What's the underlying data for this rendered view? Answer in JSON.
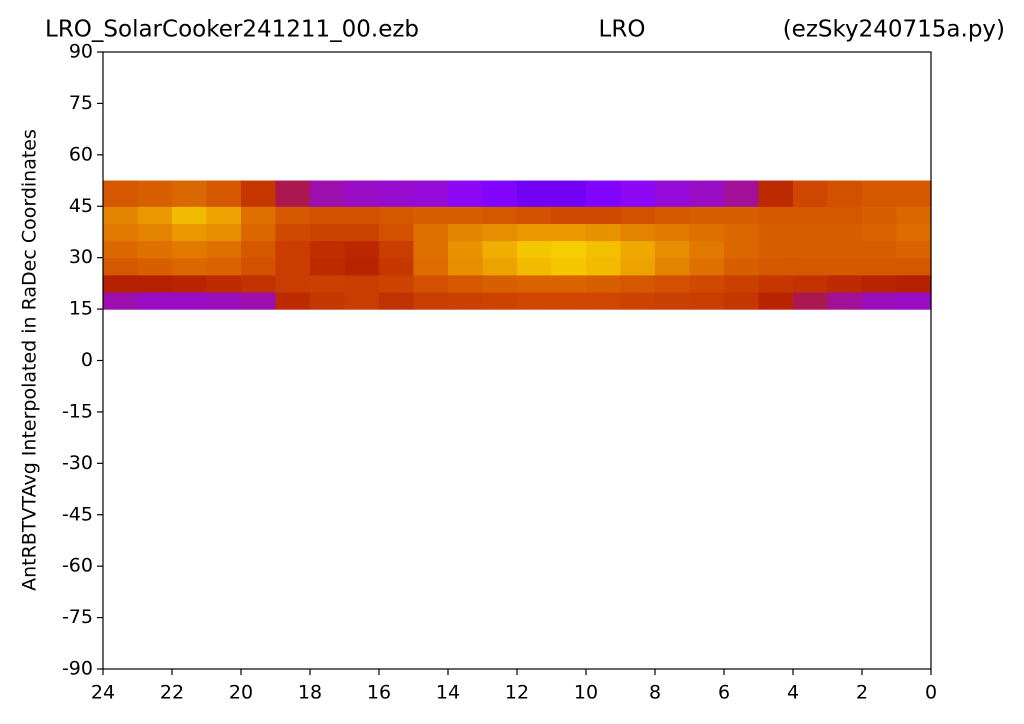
{
  "chart_data": {
    "type": "heatmap",
    "title_left": "LRO_SolarCooker241211_00.ezb",
    "title_center": "LRO",
    "title_right": "(ezSky240715a.py)",
    "y_label": "AntRBTVTAvg Interpolated in RaDec Coordinates",
    "colormap": "gnuplot",
    "xlim": [
      24,
      0
    ],
    "xticks": [
      24,
      22,
      20,
      18,
      16,
      14,
      12,
      10,
      8,
      6,
      4,
      2,
      0
    ],
    "ylim": [
      -90,
      90
    ],
    "yticks": [
      90,
      75,
      60,
      45,
      30,
      15,
      0,
      -15,
      -30,
      -45,
      -60,
      -75,
      -90
    ],
    "x_edges": [
      24,
      23,
      22,
      21,
      20,
      19,
      18,
      17,
      16,
      15,
      14,
      13,
      12,
      11,
      10,
      9,
      8,
      7,
      6,
      5,
      4,
      3,
      2,
      1,
      0
    ],
    "y_edges": [
      15,
      20,
      25,
      30,
      35,
      40,
      45,
      52.5
    ],
    "z": [
      [
        0.38,
        0.36,
        0.36,
        0.37,
        0.38,
        0.55,
        0.6,
        0.62,
        0.58,
        0.62,
        0.63,
        0.64,
        0.65,
        0.65,
        0.65,
        0.64,
        0.63,
        0.62,
        0.6,
        0.52,
        0.45,
        0.4,
        0.37,
        0.36
      ],
      [
        0.5,
        0.5,
        0.52,
        0.55,
        0.58,
        0.62,
        0.63,
        0.62,
        0.64,
        0.68,
        0.7,
        0.72,
        0.73,
        0.73,
        0.72,
        0.7,
        0.68,
        0.66,
        0.63,
        0.6,
        0.58,
        0.55,
        0.52,
        0.5
      ],
      [
        0.7,
        0.72,
        0.74,
        0.73,
        0.68,
        0.62,
        0.55,
        0.52,
        0.6,
        0.75,
        0.82,
        0.86,
        0.9,
        0.92,
        0.9,
        0.86,
        0.8,
        0.76,
        0.72,
        0.7,
        0.7,
        0.7,
        0.7,
        0.7
      ],
      [
        0.74,
        0.76,
        0.78,
        0.76,
        0.7,
        0.62,
        0.56,
        0.54,
        0.62,
        0.76,
        0.83,
        0.88,
        0.92,
        0.93,
        0.91,
        0.87,
        0.82,
        0.78,
        0.74,
        0.72,
        0.72,
        0.72,
        0.72,
        0.73
      ],
      [
        0.78,
        0.8,
        0.84,
        0.82,
        0.74,
        0.66,
        0.64,
        0.64,
        0.68,
        0.76,
        0.8,
        0.82,
        0.84,
        0.84,
        0.83,
        0.8,
        0.78,
        0.76,
        0.74,
        0.72,
        0.72,
        0.72,
        0.73,
        0.75
      ],
      [
        0.8,
        0.84,
        0.9,
        0.86,
        0.76,
        0.7,
        0.68,
        0.68,
        0.7,
        0.72,
        0.72,
        0.7,
        0.68,
        0.66,
        0.66,
        0.68,
        0.7,
        0.72,
        0.72,
        0.7,
        0.7,
        0.7,
        0.72,
        0.74
      ],
      [
        0.7,
        0.72,
        0.74,
        0.7,
        0.6,
        0.45,
        0.38,
        0.36,
        0.35,
        0.34,
        0.3,
        0.25,
        0.2,
        0.2,
        0.25,
        0.3,
        0.34,
        0.36,
        0.4,
        0.55,
        0.65,
        0.68,
        0.7,
        0.7
      ]
    ]
  }
}
